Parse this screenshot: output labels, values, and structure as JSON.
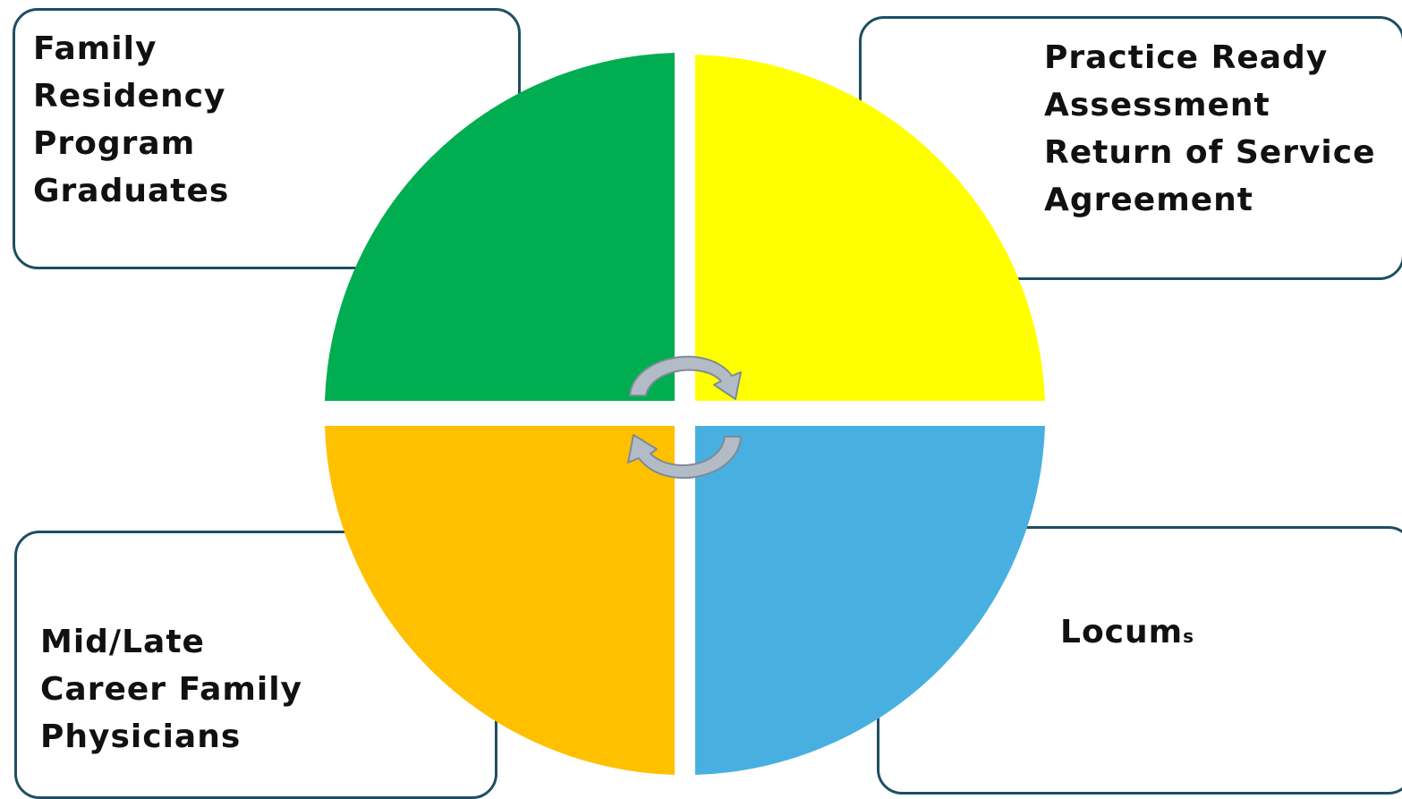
{
  "quadrants": {
    "top_left": {
      "color": "#00ad50",
      "label_lines": [
        "Family",
        "Residency",
        "Program",
        "Graduates"
      ]
    },
    "top_right": {
      "color": "#ffff00",
      "label_lines": [
        "Practice Ready",
        "Assessment",
        "Return of Service",
        "Agreement"
      ]
    },
    "bottom_left": {
      "color": "#ffc000",
      "label_lines": [
        "Mid/Late",
        "Career Family",
        "Physicians"
      ]
    },
    "bottom_right": {
      "color": "#47b0e0",
      "label_main": "Locum",
      "label_suffix": "s"
    }
  },
  "colors": {
    "box_border": "#1f4e63",
    "arrow_fill": "#b3bcc6",
    "arrow_stroke": "#7e8b97",
    "separator": "#ffffff"
  },
  "icons": {
    "center_cycle": "circular-arrows-icon"
  }
}
